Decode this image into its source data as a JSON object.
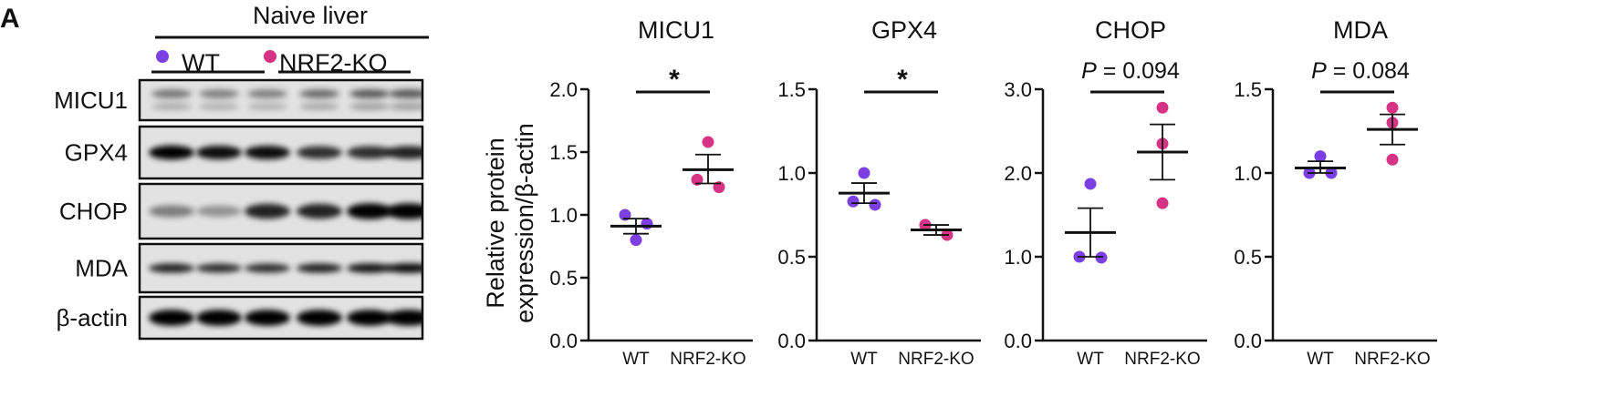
{
  "panel_label": "A",
  "blot": {
    "title": "Naive liver",
    "groups": [
      {
        "label": "WT",
        "color": "#7b3fe4"
      },
      {
        "label": "NRF2-KO",
        "color": "#d63384"
      }
    ],
    "rows": [
      "MICU1",
      "GPX4",
      "CHOP",
      "MDA",
      "β-actin"
    ]
  },
  "ylabel_line1": "Relative protein",
  "ylabel_line2": "expression/β-actin",
  "colors": {
    "WT": "#7b3fe4",
    "NRF2-KO": "#d63384",
    "axis": "#111111"
  },
  "chart_data": [
    {
      "type": "scatter",
      "title": "MICU1",
      "categories": [
        "WT",
        "NRF2-KO"
      ],
      "ylim": [
        0,
        2.0
      ],
      "yticks": [
        "0.0",
        "0.5",
        "1.0",
        "1.5",
        "2.0"
      ],
      "ytick_values": [
        0,
        0.5,
        1.0,
        1.5,
        2.0
      ],
      "series": [
        {
          "category": "WT",
          "points": [
            1.0,
            0.93,
            0.8
          ],
          "mean": 0.91,
          "sem_low": 0.85,
          "sem_high": 0.97
        },
        {
          "category": "NRF2-KO",
          "points": [
            1.58,
            1.28,
            1.22
          ],
          "mean": 1.36,
          "sem_low": 1.25,
          "sem_high": 1.48
        }
      ],
      "annotation": "*"
    },
    {
      "type": "scatter",
      "title": "GPX4",
      "categories": [
        "WT",
        "NRF2-KO"
      ],
      "ylim": [
        0,
        1.5
      ],
      "yticks": [
        "0.0",
        "0.5",
        "1.0",
        "1.5"
      ],
      "ytick_values": [
        0,
        0.5,
        1.0,
        1.5
      ],
      "series": [
        {
          "category": "WT",
          "points": [
            1.0,
            0.83,
            0.81
          ],
          "mean": 0.88,
          "sem_low": 0.82,
          "sem_high": 0.94
        },
        {
          "category": "NRF2-KO",
          "points": [
            0.69,
            0.69,
            0.63
          ],
          "mean": 0.66,
          "sem_low": 0.63,
          "sem_high": 0.69
        }
      ],
      "annotation": "*"
    },
    {
      "type": "scatter",
      "title": "CHOP",
      "categories": [
        "WT",
        "NRF2-KO"
      ],
      "ylim": [
        0,
        3.0
      ],
      "yticks": [
        "0.0",
        "1.0",
        "2.0",
        "3.0"
      ],
      "ytick_values": [
        0,
        1.0,
        2.0,
        3.0
      ],
      "series": [
        {
          "category": "WT",
          "points": [
            1.87,
            1.0,
            0.99
          ],
          "mean": 1.29,
          "sem_low": 1.0,
          "sem_high": 1.58
        },
        {
          "category": "NRF2-KO",
          "points": [
            2.78,
            2.35,
            1.64
          ],
          "mean": 2.25,
          "sem_low": 1.92,
          "sem_high": 2.58
        }
      ],
      "annotation_p": "P",
      "annotation": " = 0.094"
    },
    {
      "type": "scatter",
      "title": "MDA",
      "categories": [
        "WT",
        "NRF2-KO"
      ],
      "ylim": [
        0,
        1.5
      ],
      "yticks": [
        "0.0",
        "0.5",
        "1.0",
        "1.5"
      ],
      "ytick_values": [
        0,
        0.5,
        1.0,
        1.5
      ],
      "series": [
        {
          "category": "WT",
          "points": [
            1.1,
            1.0,
            1.0
          ],
          "mean": 1.03,
          "sem_low": 1.0,
          "sem_high": 1.07
        },
        {
          "category": "NRF2-KO",
          "points": [
            1.39,
            1.3,
            1.08
          ],
          "mean": 1.26,
          "sem_low": 1.17,
          "sem_high": 1.35
        }
      ],
      "annotation_p": "P",
      "annotation": " = 0.084"
    }
  ]
}
